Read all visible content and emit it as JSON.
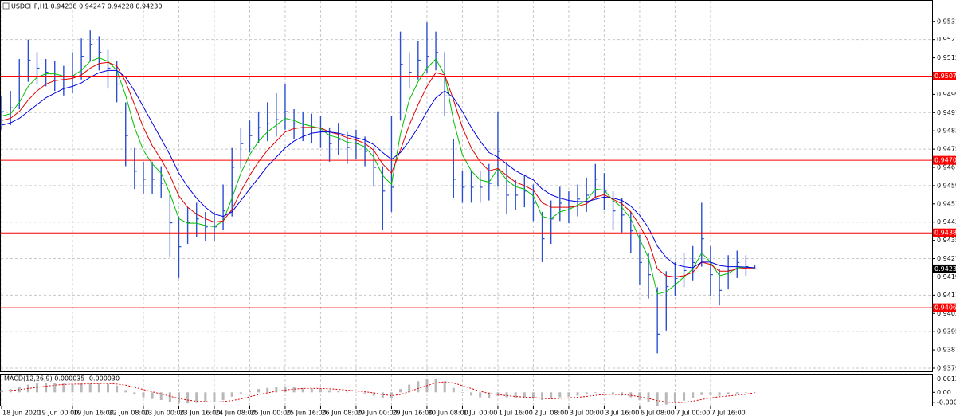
{
  "chart_data": [
    {
      "type": "ohlc",
      "title": "USDCHF,H1  0.94238 0.94247 0.94228 0.94230",
      "x": [
        0,
        4,
        8,
        12,
        16,
        20,
        24,
        28,
        32,
        36,
        40,
        44,
        48,
        52,
        56,
        60,
        64,
        68,
        72,
        76,
        80,
        84,
        88,
        92,
        96,
        100,
        104,
        108,
        112,
        116,
        120,
        124,
        128,
        132,
        136,
        140,
        144,
        148,
        152,
        156,
        160,
        164,
        168,
        172,
        176,
        180,
        184,
        188,
        192,
        196,
        200,
        204,
        208,
        212,
        216,
        220,
        224,
        228,
        232,
        236,
        240,
        244,
        248,
        252,
        256,
        260,
        264,
        268,
        272,
        276,
        280,
        284,
        288,
        292,
        296,
        300,
        304,
        308,
        312,
        316,
        320,
        324,
        328,
        332,
        336,
        340
      ],
      "xlim": [
        0,
        420
      ],
      "xticks": [
        {
          "value": 0,
          "label": "18 Jun 2020"
        },
        {
          "value": 16,
          "label": "19 Jun 00:00"
        },
        {
          "value": 32,
          "label": "19 Jun 16:00"
        },
        {
          "value": 48,
          "label": "22 Jun 08:00"
        },
        {
          "value": 64,
          "label": "23 Jun 00:00"
        },
        {
          "value": 80,
          "label": "23 Jun 16:00"
        },
        {
          "value": 96,
          "label": "24 Jun 08:00"
        },
        {
          "value": 112,
          "label": "25 Jun 00:00"
        },
        {
          "value": 128,
          "label": "25 Jun 16:00"
        },
        {
          "value": 144,
          "label": "26 Jun 08:00"
        },
        {
          "value": 160,
          "label": "29 Jun 00:00"
        },
        {
          "value": 176,
          "label": "29 Jun 16:00"
        },
        {
          "value": 192,
          "label": "30 Jun 08:00"
        },
        {
          "value": 208,
          "label": "1 Jul 00:00"
        },
        {
          "value": 224,
          "label": "1 Jul 16:00"
        },
        {
          "value": 240,
          "label": "2 Jul 08:00"
        },
        {
          "value": 256,
          "label": "3 Jul 00:00"
        },
        {
          "value": 272,
          "label": "3 Jul 16:00"
        },
        {
          "value": 288,
          "label": "6 Jul 08:00"
        },
        {
          "value": 304,
          "label": "7 Jul 00:00"
        },
        {
          "value": 320,
          "label": "7 Jul 16:00"
        }
      ],
      "ylim": [
        0.93781,
        0.95405
      ],
      "yticks": [
        0.95315,
        0.95235,
        0.95155,
        0.95075,
        0.94995,
        0.94915,
        0.94835,
        0.94755,
        0.94675,
        0.94595,
        0.94515,
        0.94435,
        0.94355,
        0.94275,
        0.94195,
        0.94115,
        0.94035,
        0.93955,
        0.93875,
        0.93795
      ],
      "grid": true,
      "bar_color": "#2a4fd0",
      "high": [
        0.9499,
        0.9501,
        0.9515,
        0.95235,
        0.9518,
        0.9515,
        0.9514,
        0.9512,
        0.9518,
        0.9524,
        0.95275,
        0.9525,
        0.9519,
        0.9514,
        0.9496,
        0.9476,
        0.947,
        0.947,
        0.9468,
        0.9456,
        0.9446,
        0.945,
        0.9452,
        0.9448,
        0.9448,
        0.946,
        0.9476,
        0.9485,
        0.9488,
        0.9492,
        0.9496,
        0.95,
        0.9504,
        0.9493,
        0.9492,
        0.9491,
        0.949,
        0.9485,
        0.9487,
        0.9483,
        0.9484,
        0.9481,
        0.9476,
        0.9468,
        0.949,
        0.9527,
        0.9518,
        0.9523,
        0.9531,
        0.9527,
        0.9518,
        0.948,
        0.9466,
        0.9466,
        0.9466,
        0.9469,
        0.9492,
        0.947,
        0.9462,
        0.9464,
        0.946,
        0.9448,
        0.9453,
        0.9459,
        0.9457,
        0.946,
        0.9463,
        0.9469,
        0.9465,
        0.9457,
        0.9454,
        0.9448,
        0.9438,
        0.943,
        0.9415,
        0.9422,
        0.9426,
        0.943,
        0.9433,
        0.9452,
        0.9433,
        0.9423,
        0.9429,
        0.9431,
        0.9429,
        0.94247
      ],
      "low": [
        0.9484,
        0.9486,
        0.9493,
        0.9505,
        0.9504,
        0.9503,
        0.9501,
        0.9499,
        0.95,
        0.9506,
        0.9514,
        0.951,
        0.9502,
        0.9496,
        0.9468,
        0.9458,
        0.9456,
        0.9456,
        0.9454,
        0.9428,
        0.9419,
        0.9434,
        0.9437,
        0.9435,
        0.9435,
        0.944,
        0.9446,
        0.9467,
        0.9474,
        0.9478,
        0.9479,
        0.9481,
        0.9484,
        0.948,
        0.9479,
        0.9478,
        0.9476,
        0.947,
        0.9473,
        0.9469,
        0.9471,
        0.9468,
        0.9459,
        0.944,
        0.9448,
        0.9488,
        0.9502,
        0.9506,
        0.9509,
        0.951,
        0.949,
        0.9454,
        0.9452,
        0.9452,
        0.9452,
        0.9453,
        0.9459,
        0.9447,
        0.9449,
        0.945,
        0.9444,
        0.9426,
        0.9434,
        0.9444,
        0.9443,
        0.9446,
        0.9448,
        0.9454,
        0.9449,
        0.944,
        0.9439,
        0.943,
        0.9416,
        0.941,
        0.9386,
        0.9396,
        0.9411,
        0.9415,
        0.9418,
        0.9424,
        0.9411,
        0.9407,
        0.9414,
        0.9419,
        0.942,
        0.94228
      ],
      "close": [
        0.94919,
        0.94936,
        0.95075,
        0.95145,
        0.9511,
        0.95092,
        0.95075,
        0.95058,
        0.95075,
        0.95162,
        0.95214,
        0.95179,
        0.9511,
        0.9504,
        0.94814,
        0.94658,
        0.94623,
        0.94623,
        0.94605,
        0.94432,
        0.94327,
        0.94432,
        0.94449,
        0.94414,
        0.94414,
        0.94484,
        0.94675,
        0.94779,
        0.94814,
        0.94849,
        0.94866,
        0.94884,
        0.94919,
        0.94866,
        0.94849,
        0.94849,
        0.94831,
        0.94779,
        0.94797,
        0.94762,
        0.94779,
        0.94745,
        0.94675,
        0.94571,
        0.94588,
        0.95127,
        0.95092,
        0.95145,
        0.95162,
        0.95179,
        0.94988,
        0.94623,
        0.94588,
        0.94588,
        0.94588,
        0.94605,
        0.94745,
        0.94553,
        0.94553,
        0.94571,
        0.94518,
        0.94362,
        0.94449,
        0.94518,
        0.94501,
        0.94536,
        0.94553,
        0.94623,
        0.94571,
        0.94484,
        0.94466,
        0.94397,
        0.94258,
        0.94205,
        0.93944,
        0.94153,
        0.94188,
        0.94223,
        0.94258,
        0.94362,
        0.94205,
        0.94136,
        0.94223,
        0.94258,
        0.9424,
        0.9423
      ],
      "lines": [
        {
          "color": "#00c000",
          "values": [
            0.949,
            0.9491,
            0.9496,
            0.9503,
            0.9507,
            0.95085,
            0.95085,
            0.95075,
            0.95075,
            0.951,
            0.9514,
            0.95155,
            0.9514,
            0.951,
            0.9499,
            0.9485,
            0.9475,
            0.9469,
            0.9465,
            0.9456,
            0.9445,
            0.9443,
            0.9443,
            0.9442,
            0.94415,
            0.9444,
            0.9454,
            0.9465,
            0.9473,
            0.9479,
            0.9483,
            0.9486,
            0.9489,
            0.9488,
            0.94865,
            0.94855,
            0.94845,
            0.94815,
            0.94805,
            0.94785,
            0.9478,
            0.94765,
            0.9472,
            0.9464,
            0.946,
            0.9482,
            0.9497,
            0.9505,
            0.9511,
            0.9515,
            0.9508,
            0.9488,
            0.9473,
            0.9466,
            0.9462,
            0.9461,
            0.9467,
            0.9462,
            0.9459,
            0.9458,
            0.9455,
            0.9446,
            0.9445,
            0.9448,
            0.9449,
            0.9451,
            0.9453,
            0.9458,
            0.94575,
            0.9453,
            0.945,
            0.9445,
            0.9436,
            0.9428,
            0.9412,
            0.9413,
            0.9416,
            0.94195,
            0.9423,
            0.943,
            0.9426,
            0.942,
            0.9421,
            0.94235,
            0.94238,
            0.94234
          ]
        },
        {
          "color": "#e00000",
          "values": [
            0.9488,
            0.9489,
            0.9492,
            0.9497,
            0.9501,
            0.9504,
            0.95055,
            0.9506,
            0.95065,
            0.9508,
            0.9511,
            0.9513,
            0.95135,
            0.9512,
            0.9505,
            0.9495,
            0.9485,
            0.9477,
            0.9471,
            0.9464,
            0.9455,
            0.945,
            0.9447,
            0.9445,
            0.94435,
            0.9444,
            0.9449,
            0.9457,
            0.9464,
            0.947,
            0.9475,
            0.9479,
            0.9483,
            0.94845,
            0.9485,
            0.9485,
            0.94848,
            0.9483,
            0.9482,
            0.94805,
            0.94795,
            0.9478,
            0.9475,
            0.9469,
            0.9465,
            0.9475,
            0.9486,
            0.9495,
            0.9503,
            0.9509,
            0.9508,
            0.9497,
            0.9485,
            0.9476,
            0.947,
            0.9466,
            0.9467,
            0.9464,
            0.9461,
            0.94595,
            0.94575,
            0.9452,
            0.945,
            0.945,
            0.945,
            0.94505,
            0.94515,
            0.94545,
            0.94555,
            0.94535,
            0.94515,
            0.9448,
            0.9442,
            0.9435,
            0.9423,
            0.942,
            0.94195,
            0.942,
            0.94215,
            0.9426,
            0.9425,
            0.9422,
            0.9422,
            0.9423,
            0.94234,
            0.94234
          ]
        },
        {
          "color": "#0000e0",
          "values": [
            0.9486,
            0.9487,
            0.9489,
            0.9492,
            0.9495,
            0.9498,
            0.95,
            0.9502,
            0.9503,
            0.95045,
            0.9507,
            0.9509,
            0.951,
            0.951,
            0.9507,
            0.9501,
            0.9494,
            0.9487,
            0.948,
            0.9473,
            0.9465,
            0.9459,
            0.9454,
            0.945,
            0.9447,
            0.9446,
            0.9448,
            0.9453,
            0.9458,
            0.9463,
            0.9468,
            0.9472,
            0.9476,
            0.9479,
            0.9481,
            0.94825,
            0.9483,
            0.9483,
            0.94825,
            0.94815,
            0.94805,
            0.94795,
            0.94775,
            0.9474,
            0.9471,
            0.9474,
            0.9479,
            0.9485,
            0.9492,
            0.9498,
            0.9501,
            0.9498,
            0.9492,
            0.9485,
            0.9479,
            0.9474,
            0.9472,
            0.9469,
            0.9466,
            0.9464,
            0.9462,
            0.9458,
            0.94555,
            0.9454,
            0.9453,
            0.94525,
            0.94525,
            0.94535,
            0.94545,
            0.9454,
            0.9453,
            0.94505,
            0.94465,
            0.9441,
            0.9433,
            0.9428,
            0.9425,
            0.9424,
            0.94235,
            0.9426,
            0.9426,
            0.94245,
            0.9424,
            0.9424,
            0.94238,
            0.94235
          ]
        }
      ],
      "hlines": {
        "color": "#ff0000",
        "values": [
          0.95075,
          0.94706,
          0.94388,
          {
            "value": 0.9406,
            "label": "0.94060"
          }
        ]
      },
      "last_price": {
        "value": 0.9423,
        "label": "0.94230"
      }
    },
    {
      "type": "macd",
      "title": "MACD(12,26,9) 0.000035 -0.000030",
      "ylim": [
        -0.0012,
        0.0016
      ],
      "yticks": [
        0.00121,
        {
          "value": 0,
          "label": "0.00"
        },
        {
          "value": -0.0009,
          "label": "-0.00090"
        }
      ],
      "histogram": {
        "color": "#b8b8b8",
        "values": [
          0.0002,
          0.0003,
          0.0005,
          0.0007,
          0.0008,
          0.00085,
          0.00085,
          0.0008,
          0.00075,
          0.0008,
          0.00085,
          0.00085,
          0.00075,
          0.0006,
          0.0002,
          -0.0002,
          -0.00045,
          -0.0006,
          -0.0007,
          -0.00085,
          -0.001,
          -0.001,
          -0.00095,
          -0.0009,
          -0.00085,
          -0.0007,
          -0.0004,
          -0.0001,
          0.00015,
          0.0003,
          0.0004,
          0.00045,
          0.0005,
          0.00045,
          0.0004,
          0.00035,
          0.0003,
          0.0002,
          0.00015,
          5e-05,
          0,
          -0.0001,
          -0.0003,
          -0.00055,
          -0.0005,
          0.0003,
          0.0007,
          0.001,
          0.0012,
          0.00125,
          0.001,
          0.0004,
          -5e-05,
          -0.0003,
          -0.00045,
          -0.0005,
          -0.00035,
          -0.00045,
          -0.0005,
          -0.0005,
          -0.00055,
          -0.0007,
          -0.0006,
          -0.00045,
          -0.0004,
          -0.0003,
          -0.0002,
          -5e-05,
          -5e-05,
          -0.0002,
          -0.0003,
          -0.00045,
          -0.0007,
          -0.0009,
          -0.00125,
          -0.0011,
          -0.00095,
          -0.00075,
          -0.00055,
          -0.00025,
          -0.00025,
          -0.0003,
          -0.0002,
          -0.0001,
          -5e-05,
          3e-05
        ]
      },
      "signal": {
        "color": "#e00000",
        "values": [
          0.0001,
          0.00015,
          0.00025,
          0.00035,
          0.00045,
          0.00055,
          0.00065,
          0.0007,
          0.00075,
          0.00075,
          0.00078,
          0.0008,
          0.0008,
          0.00075,
          0.00065,
          0.00045,
          0.00025,
          5e-05,
          -0.00015,
          -0.00035,
          -0.00055,
          -0.0007,
          -0.0008,
          -0.00085,
          -0.00088,
          -0.00085,
          -0.00075,
          -0.0006,
          -0.0004,
          -0.0002,
          -5e-05,
          0.0001,
          0.0002,
          0.0003,
          0.00035,
          0.00036,
          0.00035,
          0.00032,
          0.00027,
          0.0002,
          0.00012,
          5e-05,
          -5e-05,
          -0.0002,
          -0.0003,
          -0.0002,
          5e-05,
          0.00035,
          0.0006,
          0.00085,
          0.00095,
          0.00085,
          0.0006,
          0.00035,
          0.0001,
          -0.0001,
          -0.0002,
          -0.0003,
          -0.00038,
          -0.00043,
          -0.00047,
          -0.00055,
          -0.00058,
          -0.00055,
          -0.0005,
          -0.00045,
          -0.00037,
          -0.00027,
          -0.0002,
          -0.00018,
          -0.0002,
          -0.00027,
          -0.0004,
          -0.00055,
          -0.00075,
          -0.00088,
          -0.00093,
          -0.0009,
          -0.0008,
          -0.00065,
          -0.0005,
          -0.0004,
          -0.00033,
          -0.00025,
          -0.00018,
          -3e-05
        ]
      }
    }
  ]
}
